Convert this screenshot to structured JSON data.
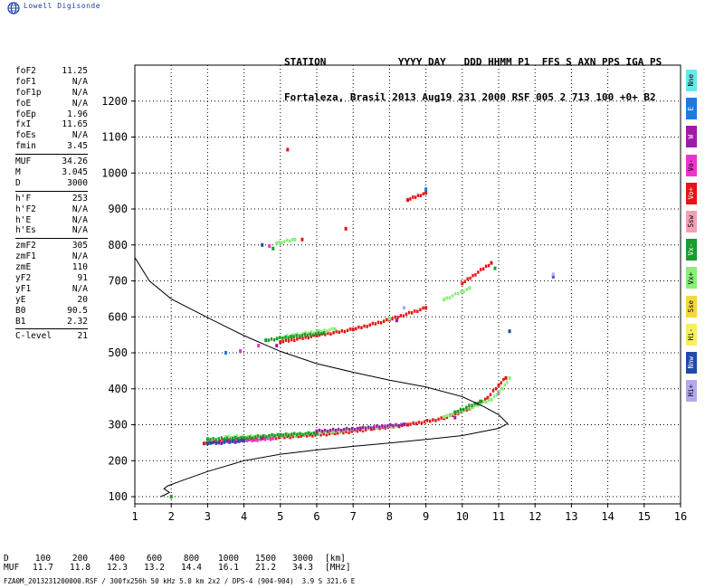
{
  "brand": {
    "text": "Lowell Digisonde",
    "icon": "globe-icon"
  },
  "header": {
    "line1": "STATION            YYYY DAY   DDD HHMM P1  FFS S AXN PPS IGA PS",
    "line2": "Fortaleza, Brasil 2013 Aug19 231 2000 RSF 005 2 713 100 +0+ B2"
  },
  "params": {
    "group1": [
      {
        "label": "foF2",
        "value": "11.25"
      },
      {
        "label": "foF1",
        "value": "N/A"
      },
      {
        "label": "foF1p",
        "value": "N/A"
      },
      {
        "label": "foE",
        "value": "N/A"
      },
      {
        "label": "foEp",
        "value": "1.96"
      },
      {
        "label": "fxI",
        "value": "11.65"
      },
      {
        "label": "foEs",
        "value": "N/A"
      },
      {
        "label": "fmin",
        "value": "3.45"
      }
    ],
    "group2": [
      {
        "label": "MUF",
        "value": "34.26"
      },
      {
        "label": "M",
        "value": "3.045"
      },
      {
        "label": "D",
        "value": "3000"
      }
    ],
    "group3": [
      {
        "label": "h'F",
        "value": "253"
      },
      {
        "label": "h'F2",
        "value": "N/A"
      },
      {
        "label": "h'E",
        "value": "N/A"
      },
      {
        "label": "h'Es",
        "value": "N/A"
      }
    ],
    "group4": [
      {
        "label": "zmF2",
        "value": "305"
      },
      {
        "label": "zmF1",
        "value": "N/A"
      },
      {
        "label": "zmE",
        "value": "110"
      },
      {
        "label": "yF2",
        "value": "91"
      },
      {
        "label": "yF1",
        "value": "N/A"
      },
      {
        "label": "yE",
        "value": "20"
      },
      {
        "label": "B0",
        "value": "90.5"
      },
      {
        "label": "B1",
        "value": "2.32"
      }
    ],
    "group5": [
      {
        "label": "C-level",
        "value": "21"
      }
    ]
  },
  "legend": [
    {
      "label": "Nne",
      "color": "#66e8ee"
    },
    {
      "label": "E",
      "color": "#1f7ae0"
    },
    {
      "label": "W",
      "color": "#a01aa8"
    },
    {
      "label": "Vo-",
      "color": "#ee33cc"
    },
    {
      "label": "Vo+",
      "color": "#e61414"
    },
    {
      "label": "Ssw",
      "color": "#f4a0b4"
    },
    {
      "label": "Vx-",
      "color": "#1c9a2c"
    },
    {
      "label": "Vx+",
      "color": "#88ee78"
    },
    {
      "label": "Sse",
      "color": "#f6d83c"
    },
    {
      "label": "Hi-",
      "color": "#f8ee62"
    },
    {
      "label": "Nnw",
      "color": "#1f4aa8"
    },
    {
      "label": "Hi+",
      "color": "#b4a8f0"
    }
  ],
  "muf_table": {
    "d_label": "D",
    "d_values": [
      "100",
      "200",
      "400",
      "600",
      "800",
      "1000",
      "1500",
      "3000"
    ],
    "d_unit": "[km]",
    "muf_label": "MUF",
    "muf_values": [
      "11.7",
      "11.8",
      "12.3",
      "13.2",
      "14.4",
      "16.1",
      "21.2",
      "34.3"
    ],
    "muf_unit": "[MHz]"
  },
  "footer": "FZA0M_2013231200000.RSF / 300fx256h 50 kHz 5.0 km 2x2 / DPS-4 (904-904)  3.9 S 321.6 E",
  "chart_data": {
    "type": "scatter",
    "xlim": [
      1,
      16
    ],
    "ylim": [
      80,
      1300
    ],
    "x_ticks": [
      1,
      2,
      3,
      4,
      5,
      6,
      7,
      8,
      9,
      10,
      11,
      12,
      13,
      14,
      15,
      16
    ],
    "y_ticks": [
      100,
      200,
      300,
      400,
      500,
      600,
      700,
      800,
      900,
      1000,
      1100,
      1200
    ],
    "grid": true,
    "profile": {
      "color": "#000000",
      "points": [
        [
          1.0,
          765
        ],
        [
          1.4,
          700
        ],
        [
          2.0,
          650
        ],
        [
          3.0,
          598
        ],
        [
          4.0,
          548
        ],
        [
          5.0,
          504
        ],
        [
          6.0,
          470
        ],
        [
          7.0,
          446
        ],
        [
          8.0,
          424
        ],
        [
          9.0,
          405
        ],
        [
          10.0,
          378
        ],
        [
          10.6,
          350
        ],
        [
          11.0,
          328
        ],
        [
          11.25,
          303
        ],
        [
          11.0,
          290
        ],
        [
          10.0,
          270
        ],
        [
          9.0,
          259
        ],
        [
          8.0,
          249
        ],
        [
          7.0,
          240
        ],
        [
          6.0,
          230
        ],
        [
          5.0,
          218
        ],
        [
          4.0,
          200
        ],
        [
          3.0,
          170
        ],
        [
          2.3,
          145
        ],
        [
          1.9,
          130
        ],
        [
          1.8,
          122
        ],
        [
          1.95,
          112
        ],
        [
          1.8,
          104
        ],
        [
          1.7,
          100
        ]
      ]
    },
    "series": [
      {
        "label": "Vo+",
        "color": "#e61414",
        "points": [
          [
            2.9,
            248
          ],
          [
            3.5,
            256
          ],
          [
            4.5,
            262
          ],
          [
            5.5,
            268
          ],
          [
            6.5,
            276
          ],
          [
            7.5,
            288
          ],
          [
            8.5,
            300
          ],
          [
            9.5,
            318
          ],
          [
            10.2,
            345
          ],
          [
            10.7,
            375
          ],
          [
            11.0,
            410
          ],
          [
            11.2,
            430
          ],
          [
            5.0,
            530
          ],
          [
            6.0,
            548
          ],
          [
            7.0,
            565
          ],
          [
            8.0,
            592
          ],
          [
            9.0,
            625
          ],
          [
            10.0,
            693
          ],
          [
            10.8,
            750
          ],
          [
            6.8,
            845
          ],
          [
            8.5,
            925
          ],
          [
            9.0,
            945
          ],
          [
            5.6,
            815
          ],
          [
            5.2,
            1065
          ]
        ]
      },
      {
        "label": "Vo-",
        "color": "#ee33cc",
        "points": [
          [
            3.3,
            250
          ],
          [
            3.8,
            255
          ],
          [
            4.3,
            258
          ],
          [
            4.8,
            262
          ],
          [
            4.4,
            520
          ],
          [
            4.7,
            797
          ],
          [
            3.9,
            505
          ],
          [
            11.0,
            390
          ]
        ]
      },
      {
        "label": "Vx+",
        "color": "#88ee78",
        "points": [
          [
            3.5,
            266
          ],
          [
            4.5,
            268
          ],
          [
            5.5,
            274
          ],
          [
            6.5,
            282
          ],
          [
            7.5,
            292
          ],
          [
            8.2,
            296
          ],
          [
            9.5,
            322
          ],
          [
            10.3,
            350
          ],
          [
            10.8,
            370
          ],
          [
            11.1,
            400
          ],
          [
            11.3,
            430
          ],
          [
            4.9,
            540
          ],
          [
            5.4,
            550
          ],
          [
            6.5,
            566
          ],
          [
            8.0,
            595
          ],
          [
            9.5,
            648
          ],
          [
            10.2,
            680
          ],
          [
            4.9,
            805
          ],
          [
            5.4,
            815
          ],
          [
            3.0,
            255
          ]
        ]
      },
      {
        "label": "Vx-",
        "color": "#1c9a2c",
        "points": [
          [
            3.0,
            260
          ],
          [
            4.0,
            263
          ],
          [
            5.0,
            272
          ],
          [
            6.0,
            276
          ],
          [
            9.8,
            335
          ],
          [
            10.5,
            365
          ],
          [
            4.6,
            535
          ],
          [
            5.3,
            545
          ],
          [
            6.2,
            555
          ],
          [
            4.8,
            790
          ],
          [
            2.0,
            100
          ],
          [
            10.9,
            735
          ]
        ]
      },
      {
        "label": "W",
        "color": "#a01aa8",
        "points": [
          [
            4.5,
            262
          ],
          [
            6.0,
            282
          ],
          [
            7.2,
            290
          ],
          [
            8.4,
            301
          ],
          [
            4.9,
            520
          ],
          [
            8.2,
            590
          ],
          [
            9.8,
            320
          ]
        ]
      },
      {
        "label": "Nnw",
        "color": "#1f4aa8",
        "points": [
          [
            3.0,
            248
          ],
          [
            4.0,
            255
          ],
          [
            4.5,
            800
          ],
          [
            11.3,
            560
          ],
          [
            12.5,
            712
          ]
        ]
      },
      {
        "label": "E",
        "color": "#1f7ae0",
        "points": [
          [
            3.5,
            500
          ],
          [
            9.0,
            955
          ]
        ]
      },
      {
        "label": "Hi+",
        "color": "#b4a8f0",
        "points": [
          [
            8.4,
            625
          ],
          [
            12.5,
            718
          ]
        ]
      }
    ]
  }
}
